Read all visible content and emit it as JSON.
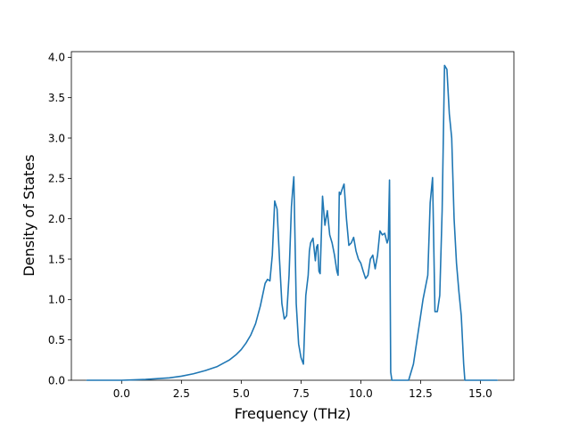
{
  "chart_data": {
    "type": "line",
    "title": "",
    "xlabel": "Frequency (THz)",
    "ylabel": "Density of States",
    "xlim": [
      -2.1,
      16.4
    ],
    "ylim": [
      0.0,
      4.07
    ],
    "xticks": [
      0.0,
      2.5,
      5.0,
      7.5,
      10.0,
      12.5,
      15.0
    ],
    "xtick_labels": [
      "0.0",
      "2.5",
      "5.0",
      "7.5",
      "10.0",
      "12.5",
      "15.0"
    ],
    "yticks": [
      0.0,
      0.5,
      1.0,
      1.5,
      2.0,
      2.5,
      3.0,
      3.5,
      4.0
    ],
    "ytick_labels": [
      "0.0",
      "0.5",
      "1.0",
      "1.5",
      "2.0",
      "2.5",
      "3.0",
      "3.5",
      "4.0"
    ],
    "grid": false,
    "legend": "none",
    "series": [
      {
        "color": "#1f77b4",
        "x": [
          -1.45,
          -0.5,
          0.0,
          0.5,
          1.0,
          1.5,
          2.0,
          2.5,
          3.0,
          3.5,
          4.0,
          4.5,
          4.8,
          5.0,
          5.2,
          5.4,
          5.6,
          5.8,
          6.0,
          6.1,
          6.2,
          6.3,
          6.4,
          6.5,
          6.6,
          6.7,
          6.8,
          6.9,
          7.0,
          7.1,
          7.15,
          7.2,
          7.3,
          7.4,
          7.5,
          7.6,
          7.7,
          7.8,
          7.85,
          7.9,
          8.0,
          8.1,
          8.15,
          8.2,
          8.25,
          8.3,
          8.4,
          8.5,
          8.6,
          8.7,
          8.8,
          8.9,
          9.0,
          9.05,
          9.1,
          9.15,
          9.2,
          9.3,
          9.4,
          9.5,
          9.6,
          9.7,
          9.8,
          9.9,
          10.0,
          10.1,
          10.2,
          10.3,
          10.4,
          10.5,
          10.6,
          10.7,
          10.8,
          10.9,
          11.0,
          11.1,
          11.15,
          11.2,
          11.25,
          11.3,
          11.4,
          11.5,
          12.0,
          12.2,
          12.4,
          12.6,
          12.8,
          12.9,
          13.0,
          13.1,
          13.2,
          13.3,
          13.4,
          13.5,
          13.6,
          13.7,
          13.8,
          13.9,
          14.0,
          14.1,
          14.2,
          14.3,
          14.35,
          14.5,
          15.0,
          15.7
        ],
        "values": [
          0.0,
          0.0,
          0.0,
          0.005,
          0.01,
          0.02,
          0.03,
          0.05,
          0.08,
          0.12,
          0.17,
          0.25,
          0.32,
          0.38,
          0.46,
          0.56,
          0.7,
          0.92,
          1.2,
          1.25,
          1.23,
          1.55,
          2.22,
          2.12,
          1.5,
          0.95,
          0.76,
          0.8,
          1.3,
          2.15,
          2.35,
          2.52,
          0.95,
          0.45,
          0.28,
          0.2,
          1.05,
          1.3,
          1.6,
          1.7,
          1.76,
          1.48,
          1.65,
          1.68,
          1.35,
          1.32,
          2.28,
          1.92,
          2.1,
          1.8,
          1.7,
          1.55,
          1.35,
          1.3,
          2.33,
          2.3,
          2.35,
          2.43,
          2.0,
          1.67,
          1.7,
          1.77,
          1.6,
          1.5,
          1.45,
          1.35,
          1.26,
          1.3,
          1.5,
          1.55,
          1.38,
          1.55,
          1.85,
          1.8,
          1.82,
          1.7,
          1.75,
          2.48,
          0.1,
          0.0,
          0.0,
          0.0,
          0.0,
          0.2,
          0.6,
          1.0,
          1.3,
          2.2,
          2.51,
          0.85,
          0.85,
          1.05,
          2.1,
          3.9,
          3.85,
          3.3,
          3.0,
          2.0,
          1.45,
          1.1,
          0.8,
          0.2,
          0.0,
          0.0,
          0.0,
          0.0
        ]
      }
    ]
  }
}
